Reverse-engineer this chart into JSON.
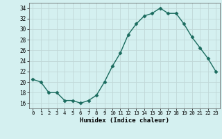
{
  "x": [
    0,
    1,
    2,
    3,
    4,
    5,
    6,
    7,
    8,
    9,
    10,
    11,
    12,
    13,
    14,
    15,
    16,
    17,
    18,
    19,
    20,
    21,
    22,
    23
  ],
  "y": [
    20.5,
    20,
    18,
    18,
    16.5,
    16.5,
    16,
    16.5,
    17.5,
    20,
    23,
    25.5,
    29,
    31,
    32.5,
    33,
    34,
    33,
    33,
    31,
    28.5,
    26.5,
    24.5,
    22
  ],
  "line_color": "#1a6b5e",
  "marker": "D",
  "marker_size": 2.5,
  "bg_color": "#d4f0f0",
  "grid_color": "#c0d8d8",
  "grid_minor_color": "#e0f0f0",
  "xlabel": "Humidex (Indice chaleur)",
  "ylim": [
    15,
    35
  ],
  "yticks": [
    16,
    18,
    20,
    22,
    24,
    26,
    28,
    30,
    32,
    34
  ],
  "xticks": [
    0,
    1,
    2,
    3,
    4,
    5,
    6,
    7,
    8,
    9,
    10,
    11,
    12,
    13,
    14,
    15,
    16,
    17,
    18,
    19,
    20,
    21,
    22,
    23
  ],
  "xtick_labels": [
    "0",
    "1",
    "2",
    "3",
    "4",
    "5",
    "6",
    "7",
    "8",
    "9",
    "10",
    "11",
    "12",
    "13",
    "14",
    "15",
    "16",
    "17",
    "18",
    "19",
    "20",
    "21",
    "22",
    "23"
  ]
}
